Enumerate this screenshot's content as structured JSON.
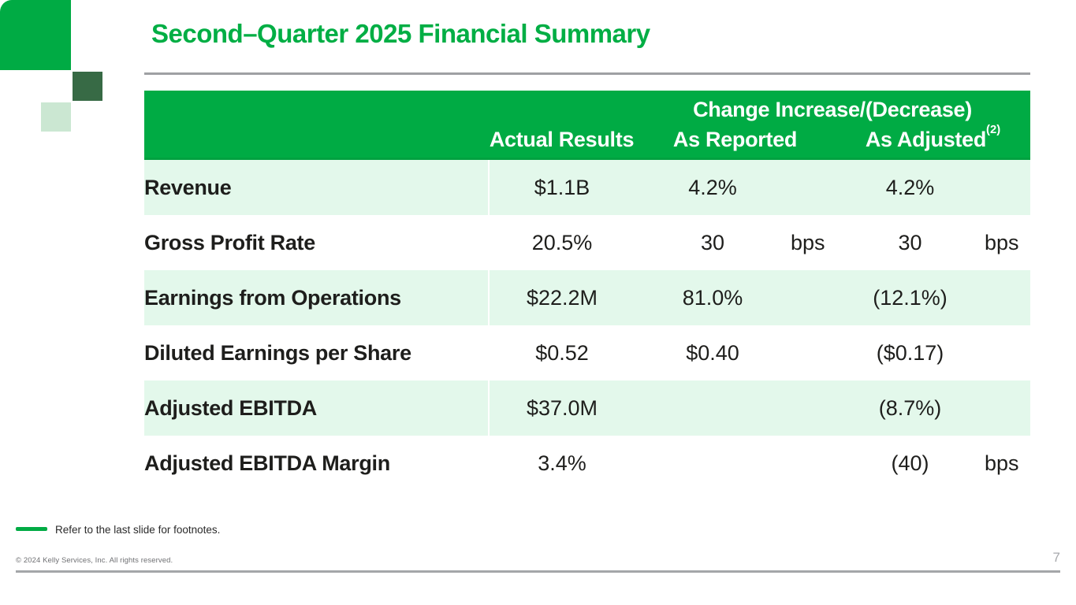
{
  "slide": {
    "title": "Second–Quarter 2025 Financial Summary",
    "footnote": "Refer to the last slide for footnotes.",
    "copyright": "© 2024 Kelly Services, Inc. All rights reserved.",
    "page_number": "7"
  },
  "colors": {
    "kelly_green": "#00AB44",
    "title_green": "#00AE44",
    "logo_dark_green": "#376A45",
    "logo_light_green": "#CBE7D2",
    "row_mint": "#E3F8EB",
    "body_text": "#1E1E1C",
    "gray_rule": "#A4A6A9"
  },
  "table": {
    "header": {
      "change_group_label": "Change Increase/(Decrease)",
      "columns": [
        "Actual Results",
        "As Reported",
        "As Adjusted"
      ],
      "as_adjusted_superscript": "(2)"
    },
    "rows": [
      {
        "label": "Revenue",
        "actual": "$1.1B",
        "as_reported": "4.2%",
        "as_reported_unit": "",
        "as_adjusted": "4.2%",
        "as_adjusted_unit": ""
      },
      {
        "label": "Gross Profit Rate",
        "actual": "20.5%",
        "as_reported": "30",
        "as_reported_unit": "bps",
        "as_adjusted": "30",
        "as_adjusted_unit": "bps"
      },
      {
        "label": "Earnings from Operations",
        "actual": "$22.2M",
        "as_reported": "81.0%",
        "as_reported_unit": "",
        "as_adjusted": "(12.1%)",
        "as_adjusted_unit": ""
      },
      {
        "label": "Diluted Earnings per Share",
        "actual": "$0.52",
        "as_reported": "$0.40",
        "as_reported_unit": "",
        "as_adjusted": "($0.17)",
        "as_adjusted_unit": ""
      },
      {
        "label": "Adjusted EBITDA",
        "actual": "$37.0M",
        "as_reported": "",
        "as_reported_unit": "",
        "as_adjusted": "(8.7%)",
        "as_adjusted_unit": ""
      },
      {
        "label": "Adjusted EBITDA Margin",
        "actual": "3.4%",
        "as_reported": "",
        "as_reported_unit": "",
        "as_adjusted": "(40)",
        "as_adjusted_unit": "bps"
      }
    ]
  }
}
